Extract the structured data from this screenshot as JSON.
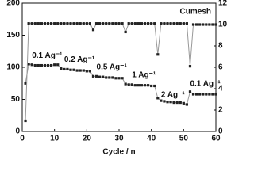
{
  "chart_data": {
    "type": "scatter",
    "x_label": "Cycle / n",
    "x": [
      1,
      2,
      3,
      4,
      5,
      6,
      7,
      8,
      9,
      10,
      11,
      12,
      13,
      14,
      15,
      16,
      17,
      18,
      19,
      20,
      21,
      22,
      23,
      24,
      25,
      26,
      27,
      28,
      29,
      30,
      31,
      32,
      33,
      34,
      35,
      36,
      37,
      38,
      39,
      40,
      41,
      42,
      43,
      44,
      45,
      46,
      47,
      48,
      49,
      50,
      51,
      52,
      53,
      54,
      55,
      56,
      57,
      58,
      59,
      60
    ],
    "series": [
      {
        "name": "Cumesh",
        "color": "#222222",
        "line_color": "#999999",
        "values": [
          75,
          105,
          104,
          103,
          103,
          103,
          103,
          103,
          103,
          104,
          104,
          98,
          97,
          97,
          96,
          96,
          95,
          95,
          95,
          94,
          94,
          86,
          86,
          85,
          85,
          84,
          84,
          84,
          83,
          83,
          83,
          74,
          73,
          73,
          72,
          72,
          72,
          72,
          72,
          71,
          71,
          52,
          48,
          47,
          46,
          46,
          45,
          45,
          45,
          44,
          42,
          62,
          58,
          58,
          58,
          58,
          58,
          58,
          58,
          58
        ]
      },
      {
        "color": "#222222",
        "line_color": "#999999",
        "axis": "y2",
        "values": [
          1.0,
          10.1,
          10.1,
          10.1,
          10.1,
          10.1,
          10.1,
          10.1,
          10.1,
          10.1,
          10.1,
          10.1,
          10.1,
          10.1,
          10.1,
          10.1,
          10.1,
          10.1,
          10.1,
          10.1,
          10.1,
          9.5,
          10.1,
          10.1,
          10.1,
          10.1,
          10.1,
          10.1,
          10.1,
          10.1,
          10.1,
          9.3,
          10.1,
          10.1,
          10.1,
          10.1,
          10.1,
          10.1,
          10.1,
          10.1,
          10.1,
          7.2,
          10.1,
          10.1,
          10.1,
          10.1,
          10.1,
          10.1,
          10.1,
          10.1,
          10.1,
          6.1,
          10.0,
          10.0,
          10.0,
          10.0,
          10.0,
          10.0,
          10.0,
          10.0
        ]
      }
    ],
    "annotations": [
      "0.1 Ag⁻¹",
      "0.2 Ag⁻¹",
      "0.5 Ag⁻¹",
      "1 Ag⁻¹",
      "2 Ag⁻¹",
      "0.1 Ag⁻¹"
    ],
    "xlim": [
      0,
      60
    ],
    "xticks": [
      0,
      10,
      20,
      30,
      40,
      50,
      60
    ],
    "ylim": [
      0,
      200
    ],
    "yticks": [
      0,
      50,
      100,
      150,
      200
    ],
    "y2lim": [
      0,
      12
    ],
    "y2ticks": [
      0,
      2,
      4,
      6,
      8,
      10,
      12
    ],
    "legend": "upper right"
  }
}
